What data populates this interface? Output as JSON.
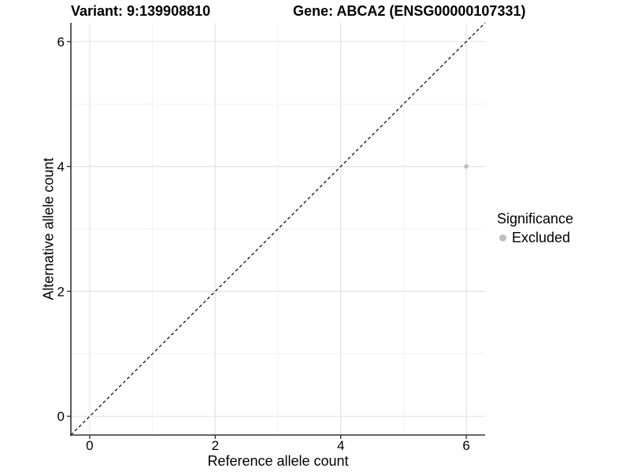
{
  "chart_data": {
    "type": "scatter",
    "title_left": "Variant: 9:139908810",
    "title_right": "Gene: ABCA2 (ENSG00000107331)",
    "xlabel": "Reference allele count",
    "ylabel": "Alternative allele count",
    "xlim": [
      -0.3,
      6.3
    ],
    "ylim": [
      -0.3,
      6.3
    ],
    "xticks": [
      0,
      2,
      4,
      6
    ],
    "yticks": [
      0,
      2,
      4,
      6
    ],
    "xticks_minor": [
      1,
      3,
      5
    ],
    "yticks_minor": [
      1,
      3,
      5
    ],
    "grid": "major and minor gridlines, white panel background",
    "reference_line": {
      "kind": "identity y=x",
      "style": "dashed",
      "x": [
        -0.3,
        6.3
      ],
      "y": [
        -0.3,
        6.3
      ]
    },
    "series": [
      {
        "name": "Excluded",
        "color": "#bebebe",
        "point_radius": 2.8,
        "points": [
          {
            "x": 6,
            "y": 4
          }
        ]
      }
    ],
    "legend": {
      "title": "Significance",
      "position": "right",
      "items": [
        {
          "label": "Excluded",
          "color": "#bebebe"
        }
      ]
    }
  },
  "colors": {
    "background": "#ffffff",
    "axis_line": "#333333",
    "tick_mark": "#333333",
    "grid_major": "#e4e4e4",
    "grid_minor": "#f1f1f1",
    "reference_line": "#000000",
    "text": "#000000"
  }
}
